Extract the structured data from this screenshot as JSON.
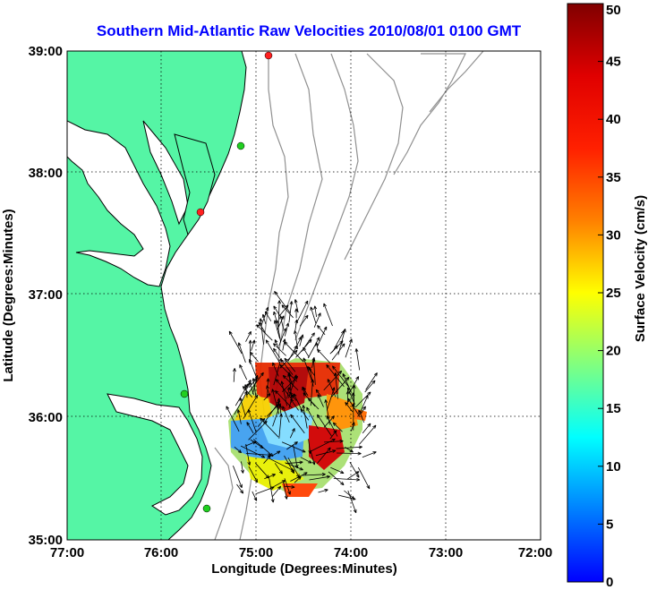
{
  "title": "Southern Mid-Atlantic Raw Velocities 2010/08/01 0100 GMT",
  "xlabel": "Longitude (Degrees:Minutes)",
  "ylabel": "Latitude (Degrees:Minutes)",
  "colorbar": {
    "label": "Surface Velocity (cm/s)",
    "ticks": [
      "0",
      "5",
      "10",
      "15",
      "20",
      "25",
      "30",
      "35",
      "40",
      "45",
      "50"
    ]
  },
  "chart_data": {
    "type": "map",
    "x_ticks": [
      "77:00",
      "76:00",
      "75:00",
      "74:00",
      "73:00",
      "72:00"
    ],
    "y_ticks": [
      "39:00",
      "38:00",
      "37:00",
      "36:00",
      "35:00"
    ],
    "lon_range": [
      -77,
      -72
    ],
    "lat_range": [
      35,
      39
    ],
    "grid": true,
    "colorbar_range": [
      0,
      50
    ],
    "colors": {
      "land": "#55f5a5",
      "water": "#ffffff",
      "coast": "#000000",
      "bathymetry": "#909090",
      "title": "#0000ff"
    }
  }
}
